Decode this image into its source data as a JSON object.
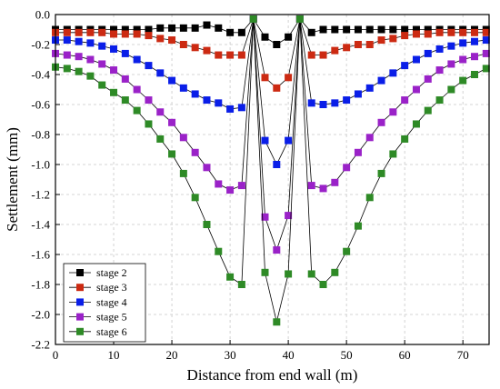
{
  "chart_data": {
    "type": "line",
    "xlabel": "Distance from end wall (m)",
    "ylabel": "Settlement (mm)",
    "xlim": [
      0,
      74.5
    ],
    "ylim": [
      -2.2,
      0.0
    ],
    "xticks": [
      0,
      10,
      20,
      30,
      40,
      50,
      60,
      70
    ],
    "yticks": [
      0.0,
      -0.2,
      -0.4,
      -0.6,
      -0.8,
      -1.0,
      -1.2,
      -1.4,
      -1.6,
      -1.8,
      -2.0,
      -2.2
    ],
    "ytick_labels": [
      "0.0",
      "-0.2",
      "-0.4",
      "-0.6",
      "-0.8",
      "-1.0",
      "-1.2",
      "-1.4",
      "-1.6",
      "-1.8",
      "-2.0",
      "-2.2"
    ],
    "grid": true,
    "legend_position": "bottom-left",
    "series": [
      {
        "name": "stage 2",
        "color": "#000000",
        "x": [
          0,
          2,
          4,
          6,
          8,
          10,
          12,
          14,
          16,
          18,
          20,
          22,
          24,
          26,
          28,
          30,
          32,
          34,
          36,
          38,
          40,
          42,
          44,
          46,
          48,
          50,
          52,
          54,
          56,
          58,
          60,
          62,
          64,
          66,
          68,
          70,
          72,
          74
        ],
        "values": [
          -0.1,
          -0.1,
          -0.1,
          -0.1,
          -0.1,
          -0.1,
          -0.1,
          -0.1,
          -0.1,
          -0.09,
          -0.09,
          -0.09,
          -0.09,
          -0.07,
          -0.09,
          -0.12,
          -0.12,
          -0.03,
          -0.15,
          -0.2,
          -0.15,
          -0.03,
          -0.12,
          -0.1,
          -0.1,
          -0.1,
          -0.1,
          -0.1,
          -0.1,
          -0.1,
          -0.1,
          -0.1,
          -0.1,
          -0.1,
          -0.1,
          -0.1,
          -0.1,
          -0.1
        ]
      },
      {
        "name": "stage 3",
        "color": "#cc2a12",
        "x": [
          0,
          2,
          4,
          6,
          8,
          10,
          12,
          14,
          16,
          18,
          20,
          22,
          24,
          26,
          28,
          30,
          32,
          34,
          36,
          38,
          40,
          42,
          44,
          46,
          48,
          50,
          52,
          54,
          56,
          58,
          60,
          62,
          64,
          66,
          68,
          70,
          72,
          74
        ],
        "values": [
          -0.12,
          -0.12,
          -0.12,
          -0.12,
          -0.12,
          -0.13,
          -0.13,
          -0.13,
          -0.14,
          -0.16,
          -0.17,
          -0.2,
          -0.22,
          -0.24,
          -0.27,
          -0.27,
          -0.27,
          -0.03,
          -0.42,
          -0.49,
          -0.42,
          -0.03,
          -0.27,
          -0.27,
          -0.24,
          -0.22,
          -0.2,
          -0.2,
          -0.17,
          -0.16,
          -0.14,
          -0.13,
          -0.13,
          -0.12,
          -0.12,
          -0.12,
          -0.12,
          -0.12
        ]
      },
      {
        "name": "stage 4",
        "color": "#0a1ee8",
        "x": [
          0,
          2,
          4,
          6,
          8,
          10,
          12,
          14,
          16,
          18,
          20,
          22,
          24,
          26,
          28,
          30,
          32,
          34,
          36,
          38,
          40,
          42,
          44,
          46,
          48,
          50,
          52,
          54,
          56,
          58,
          60,
          62,
          64,
          66,
          68,
          70,
          72,
          74
        ],
        "values": [
          -0.17,
          -0.17,
          -0.18,
          -0.19,
          -0.21,
          -0.23,
          -0.26,
          -0.3,
          -0.34,
          -0.39,
          -0.44,
          -0.49,
          -0.53,
          -0.57,
          -0.59,
          -0.63,
          -0.62,
          -0.03,
          -0.84,
          -1.0,
          -0.84,
          -0.03,
          -0.59,
          -0.6,
          -0.59,
          -0.57,
          -0.53,
          -0.49,
          -0.44,
          -0.39,
          -0.34,
          -0.3,
          -0.26,
          -0.23,
          -0.21,
          -0.19,
          -0.18,
          -0.17
        ]
      },
      {
        "name": "stage 5",
        "color": "#9a22c8",
        "x": [
          0,
          2,
          4,
          6,
          8,
          10,
          12,
          14,
          16,
          18,
          20,
          22,
          24,
          26,
          28,
          30,
          32,
          34,
          36,
          38,
          40,
          42,
          44,
          46,
          48,
          50,
          52,
          54,
          56,
          58,
          60,
          62,
          64,
          66,
          68,
          70,
          72,
          74
        ],
        "values": [
          -0.26,
          -0.27,
          -0.28,
          -0.3,
          -0.33,
          -0.37,
          -0.43,
          -0.5,
          -0.57,
          -0.65,
          -0.72,
          -0.82,
          -0.92,
          -1.02,
          -1.13,
          -1.17,
          -1.14,
          -0.03,
          -1.35,
          -1.57,
          -1.34,
          -0.03,
          -1.14,
          -1.16,
          -1.12,
          -1.02,
          -0.92,
          -0.82,
          -0.72,
          -0.65,
          -0.57,
          -0.5,
          -0.43,
          -0.37,
          -0.33,
          -0.3,
          -0.28,
          -0.26
        ]
      },
      {
        "name": "stage 6",
        "color": "#2e8a26",
        "x": [
          0,
          2,
          4,
          6,
          8,
          10,
          12,
          14,
          16,
          18,
          20,
          22,
          24,
          26,
          28,
          30,
          32,
          34,
          36,
          38,
          40,
          42,
          44,
          46,
          48,
          50,
          52,
          54,
          56,
          58,
          60,
          62,
          64,
          66,
          68,
          70,
          72,
          74
        ],
        "values": [
          -0.35,
          -0.36,
          -0.38,
          -0.41,
          -0.47,
          -0.52,
          -0.57,
          -0.64,
          -0.73,
          -0.83,
          -0.93,
          -1.06,
          -1.22,
          -1.4,
          -1.58,
          -1.75,
          -1.8,
          -0.03,
          -1.72,
          -2.05,
          -1.73,
          -0.03,
          -1.73,
          -1.8,
          -1.72,
          -1.58,
          -1.41,
          -1.22,
          -1.06,
          -0.93,
          -0.83,
          -0.73,
          -0.64,
          -0.57,
          -0.5,
          -0.44,
          -0.4,
          -0.36
        ]
      }
    ]
  }
}
